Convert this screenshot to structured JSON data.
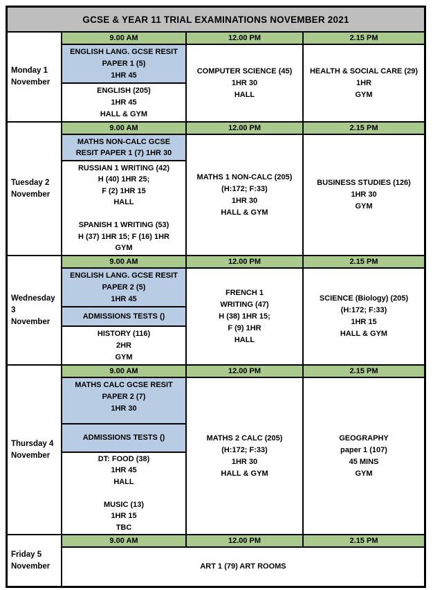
{
  "title": "GCSE & YEAR 11 TRIAL EXAMINATIONS NOVEMBER 2021",
  "colors": {
    "title_gray": "#BEBEBE",
    "time_green": "#A9C98D",
    "resit_blue": "#B8CCE4",
    "border_black": "#000000"
  },
  "time_headers": [
    "9.00 AM",
    "12.00 PM",
    "2.15 PM"
  ],
  "days": [
    {
      "label": "Monday 1\nNovember",
      "morning_blocks": [
        {
          "style": "blue",
          "text": "ENGLISH LANG. GCSE RESIT\nPAPER 1 (5)\n1HR 45"
        },
        {
          "style": "white",
          "text": "ENGLISH (205)\n1HR 45\nHALL & GYM"
        }
      ],
      "noon": "COMPUTER SCIENCE (45)\n1HR 30\nHALL",
      "afternoon": "HEALTH & SOCIAL CARE (29)\n1HR\nGYM"
    },
    {
      "label": "Tuesday 2\nNovember",
      "morning_blocks": [
        {
          "style": "blue",
          "text": "MATHS NON-CALC GCSE\nRESIT PAPER 1 (7) 1HR 30"
        },
        {
          "style": "white",
          "text": "RUSSIAN 1 WRITING (42)\nH (40) 1HR 25;\nF (2) 1HR 15\nHALL\n\nSPANISH 1 WRITING (53)\nH (37) 1HR 15; F (16) 1HR\nGYM"
        }
      ],
      "noon": "MATHS 1 NON-CALC (205)\n(H:172; F:33)\n1HR 30\nHALL & GYM",
      "afternoon": "BUSINESS STUDIES (126)\n1HR 30\nGYM"
    },
    {
      "label": "Wednesday\n3\nNovember",
      "morning_blocks": [
        {
          "style": "blue",
          "text": "ENGLISH LANG. GCSE RESIT\nPAPER 2 (5)\n1HR 45"
        },
        {
          "style": "blue",
          "text": "ADMISSIONS TESTS ()"
        },
        {
          "style": "white",
          "text": "HISTORY (116)\n2HR\nGYM"
        }
      ],
      "noon": "FRENCH 1\nWRITING (47)\nH (38) 1HR 15;\nF (9) 1HR\nHALL",
      "afternoon": "SCIENCE (Biology) (205)\n(H:172; F:33)\n1HR 15\nHALL & GYM"
    },
    {
      "label": "Thursday 4\nNovember",
      "morning_blocks": [
        {
          "style": "blue",
          "text": "MATHS CALC GCSE RESIT\nPAPER 2 (7)\n1HR 30"
        },
        {
          "style": "blue",
          "text": "ADMISSIONS TESTS ()"
        },
        {
          "style": "white",
          "text": "DT: FOOD (38)\n1HR 45\nHALL\n\nMUSIC (13)\n1HR 15\nTBC"
        }
      ],
      "noon": "MATHS 2 CALC (205)\n(H:172; F:33)\n1HR 30\nHALL & GYM",
      "afternoon": "GEOGRAPHY\npaper 1 (107)\n45 MINS\nGYM"
    },
    {
      "label": "Friday 5\nNovember",
      "merged": "ART 1 (79)   ART ROOMS"
    }
  ]
}
